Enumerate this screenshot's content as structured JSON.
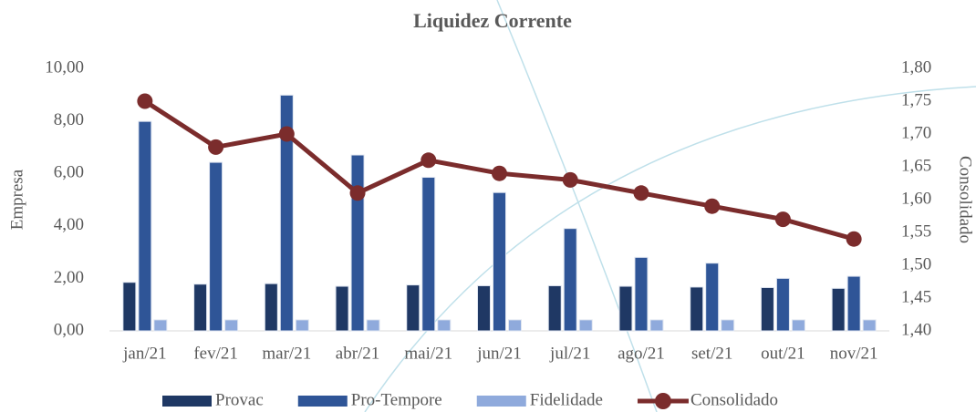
{
  "chart_data": {
    "type": "bar",
    "title": "Liquidez Corrente",
    "categories": [
      "jan/21",
      "fev/21",
      "mar/21",
      "abr/21",
      "mai/21",
      "jun/21",
      "jul/21",
      "ago/21",
      "set/21",
      "out/21",
      "nov/21"
    ],
    "series": [
      {
        "name": "Provac",
        "color": "#1f3864",
        "values": [
          1.85,
          1.78,
          1.8,
          1.7,
          1.75,
          1.72,
          1.72,
          1.7,
          1.67,
          1.65,
          1.62
        ]
      },
      {
        "name": "Pro-Tempore",
        "color": "#2f5597",
        "values": [
          7.98,
          6.42,
          8.98,
          6.7,
          5.85,
          5.27,
          3.9,
          2.8,
          2.58,
          2.0,
          2.08
        ]
      },
      {
        "name": "Fidelidade",
        "color": "#8faadc",
        "values": [
          0.42,
          0.42,
          0.42,
          0.42,
          0.42,
          0.42,
          0.42,
          0.42,
          0.42,
          0.42,
          0.42
        ]
      },
      {
        "name": "Consolidado",
        "color": "#7b2c2c",
        "type": "line",
        "axis": "y2",
        "values": [
          1.75,
          1.68,
          1.7,
          1.61,
          1.66,
          1.64,
          1.63,
          1.61,
          1.59,
          1.57,
          1.54
        ]
      }
    ],
    "ylabel": "Empresa",
    "y2label": "Consolidado",
    "ylim": [
      0,
      10
    ],
    "yticks": [
      {
        "value": 0,
        "label": "0,00"
      },
      {
        "value": 2,
        "label": "2,00"
      },
      {
        "value": 4,
        "label": "4,00"
      },
      {
        "value": 6,
        "label": "6,00"
      },
      {
        "value": 8,
        "label": "8,00"
      },
      {
        "value": 10,
        "label": "10,00"
      }
    ],
    "y2lim": [
      1.4,
      1.8
    ],
    "y2ticks": [
      {
        "value": 1.4,
        "label": "1,40"
      },
      {
        "value": 1.45,
        "label": "1,45"
      },
      {
        "value": 1.5,
        "label": "1,50"
      },
      {
        "value": 1.55,
        "label": "1,55"
      },
      {
        "value": 1.6,
        "label": "1,60"
      },
      {
        "value": 1.65,
        "label": "1,65"
      },
      {
        "value": 1.7,
        "label": "1,70"
      },
      {
        "value": 1.75,
        "label": "1,75"
      },
      {
        "value": 1.8,
        "label": "1,80"
      }
    ],
    "legend": "bottom"
  }
}
